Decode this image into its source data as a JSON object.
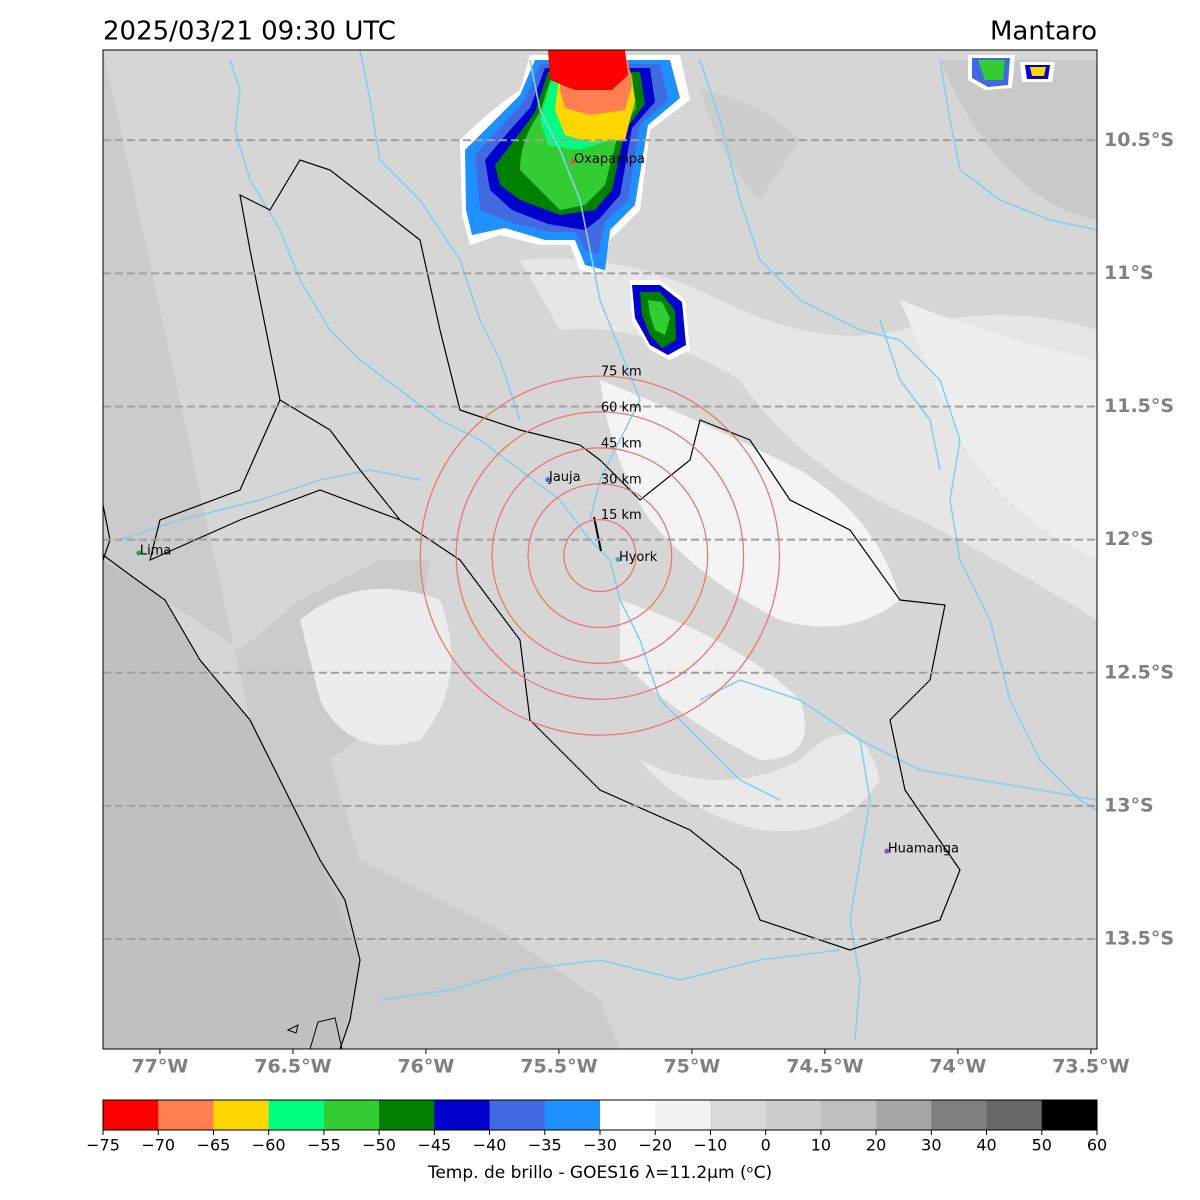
{
  "map": {
    "title": "2025/03/21 09:30 UTC",
    "region": "Mantaro",
    "xlim": [
      -77.214,
      -73.477
    ],
    "ylim": [
      -13.913,
      -10.161
    ],
    "xticks": [
      {
        "value": -77,
        "label": "77°W"
      },
      {
        "value": -76.5,
        "label": "76.5°W"
      },
      {
        "value": -76,
        "label": "76°W"
      },
      {
        "value": -75.5,
        "label": "75.5°W"
      },
      {
        "value": -75,
        "label": "75°W"
      },
      {
        "value": -74.5,
        "label": "74.5°W"
      },
      {
        "value": -74,
        "label": "74°W"
      },
      {
        "value": -73.5,
        "label": "73.5°W"
      }
    ],
    "yticks": [
      {
        "value": -10.5,
        "label": "10.5°S"
      },
      {
        "value": -11,
        "label": "11°S"
      },
      {
        "value": -11.5,
        "label": "11.5°S"
      },
      {
        "value": -12,
        "label": "12°S"
      },
      {
        "value": -12.5,
        "label": "12.5°S"
      },
      {
        "value": -13,
        "label": "13°S"
      },
      {
        "value": -13.5,
        "label": "13.5°S"
      }
    ],
    "rings": {
      "center": [
        -75.346,
        -12.06
      ],
      "color": "#e87070",
      "radii_km": [
        {
          "value": 15,
          "label": "15 km"
        },
        {
          "value": 30,
          "label": "30 km"
        },
        {
          "value": 45,
          "label": "45 km"
        },
        {
          "value": 60,
          "label": "60 km"
        },
        {
          "value": 75,
          "label": "75 km"
        }
      ]
    },
    "places": [
      {
        "name": "Oxapampa",
        "lon": -75.447,
        "lat": -10.58,
        "color": "#e05050"
      },
      {
        "name": "Jauja",
        "lon": -75.541,
        "lat": -11.775,
        "color": "#3070c0"
      },
      {
        "name": "Hyork",
        "lon": -75.278,
        "lat": -12.075,
        "color": "#40b0b0"
      },
      {
        "name": "Lima",
        "lon": -77.079,
        "lat": -12.05,
        "color": "#20a060"
      },
      {
        "name": "Huamanga",
        "lon": -74.267,
        "lat": -13.17,
        "color": "#9050c0"
      }
    ],
    "colorbar": {
      "label": "Temp. de brillo - GOES16 λ=11.2μm (ᵒC)",
      "ticks": [
        {
          "value": -75,
          "label": "−75"
        },
        {
          "value": -70,
          "label": "−70"
        },
        {
          "value": -65,
          "label": "−65"
        },
        {
          "value": -60,
          "label": "−60"
        },
        {
          "value": -55,
          "label": "−55"
        },
        {
          "value": -50,
          "label": "−50"
        },
        {
          "value": -45,
          "label": "−45"
        },
        {
          "value": -40,
          "label": "−40"
        },
        {
          "value": -35,
          "label": "−35"
        },
        {
          "value": -30,
          "label": "−30"
        },
        {
          "value": -20,
          "label": "−20"
        },
        {
          "value": -10,
          "label": "−10"
        },
        0,
        10,
        20,
        30,
        40,
        50,
        60
      ],
      "colors": [
        "#ff0000",
        "#ff7f50",
        "#ffd700",
        "#00ff7f",
        "#32cd32",
        "#008000",
        "#0000cd",
        "#4169e1",
        "#1e90ff",
        "#ffffff",
        "#f2f2f2",
        "#d9d9d9",
        "#cccccc",
        "#bfbfbf",
        "#a6a6a6",
        "#808080",
        "#696969",
        "#000000"
      ]
    }
  }
}
